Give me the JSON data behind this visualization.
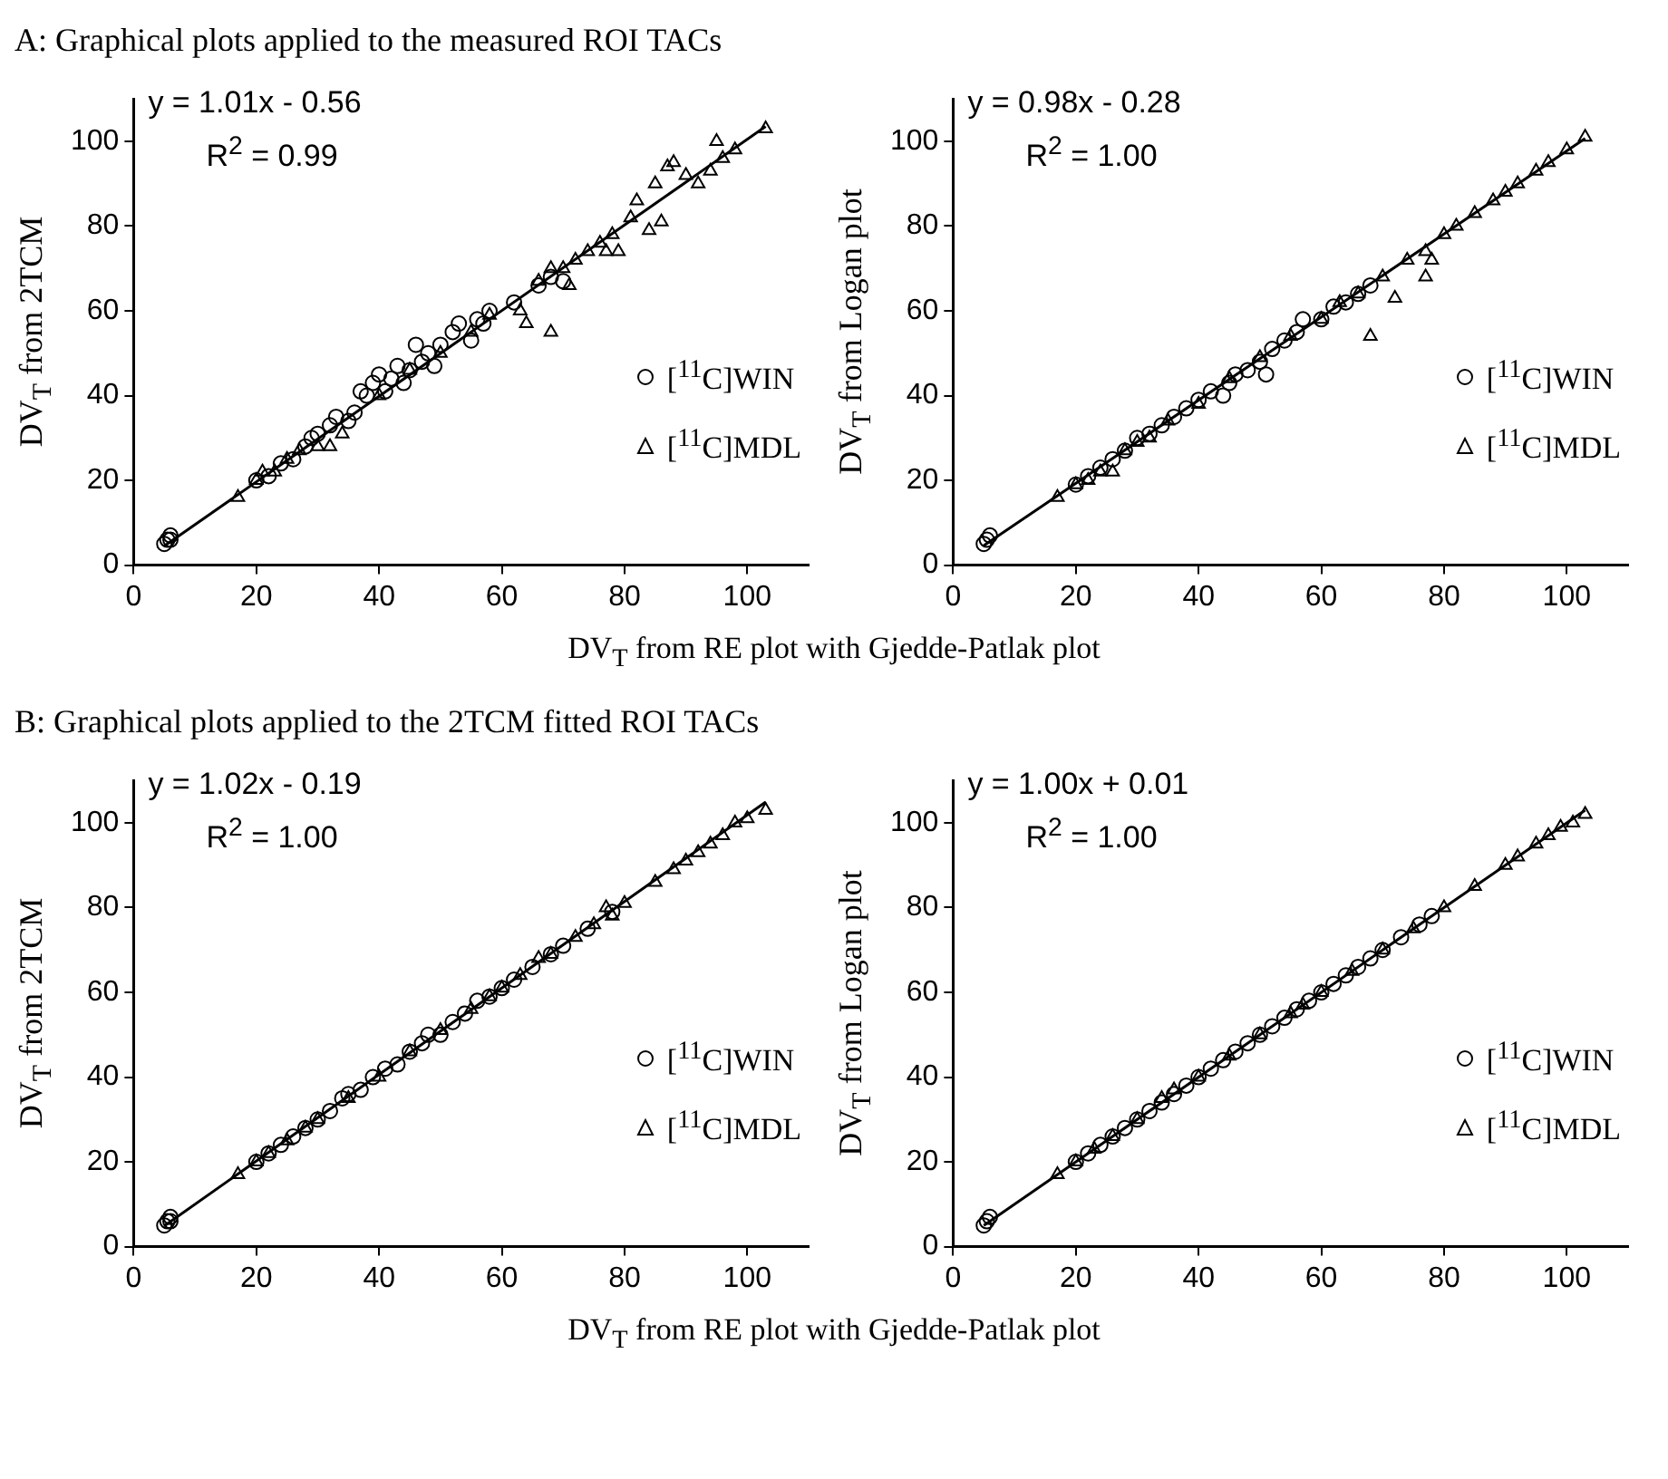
{
  "chart_data": [
    {
      "type": "scatter",
      "title": "A: Graphical plots applied to the measured ROI TACs",
      "xlabel": "DV$_{T}$ from RE plot with Gjedde-Patlak plot",
      "ylabel": "DV$_{T}$ from 2TCM",
      "xlim": [
        0,
        110
      ],
      "ylim": [
        0,
        110
      ],
      "xticks": [
        0,
        20,
        40,
        60,
        80,
        100
      ],
      "yticks": [
        0,
        20,
        40,
        60,
        80,
        100
      ],
      "grid": false,
      "legend": "right",
      "annotations": [
        "y = 1.01x - 0.56",
        "R$^{2}$ = 0.99"
      ],
      "series": [
        {
          "name": "[$^{11}$C]WIN",
          "marker": "circle",
          "color": "#000000",
          "x": [
            5,
            5.5,
            6,
            6,
            20,
            22,
            24,
            26,
            28,
            29,
            30,
            32,
            33,
            35,
            36,
            37,
            38,
            39,
            40,
            41,
            42,
            43,
            44,
            45,
            46,
            47,
            48,
            49,
            50,
            52,
            53,
            55,
            56,
            57,
            58,
            62,
            66,
            68,
            70
          ],
          "values": [
            5,
            6,
            7,
            6,
            20,
            21,
            24,
            25,
            28,
            30,
            31,
            33,
            35,
            34,
            36,
            41,
            40,
            43,
            45,
            41,
            44,
            47,
            43,
            46,
            52,
            48,
            50,
            47,
            52,
            55,
            57,
            53,
            58,
            57,
            60,
            62,
            66,
            68,
            67
          ]
        },
        {
          "name": "[$^{11}$C]MDL",
          "marker": "triangle",
          "color": "#000000",
          "x": [
            17,
            20,
            21,
            23,
            25,
            27,
            30,
            32,
            34,
            40,
            45,
            50,
            55,
            58,
            63,
            64,
            66,
            68,
            68,
            70,
            71,
            72,
            74,
            76,
            77,
            78,
            79,
            81,
            82,
            84,
            85,
            86,
            87,
            88,
            90,
            92,
            94,
            95,
            96,
            98,
            103
          ],
          "values": [
            16,
            20,
            22,
            22,
            25,
            27,
            28,
            28,
            31,
            40,
            46,
            50,
            55,
            59,
            60,
            57,
            67,
            55,
            70,
            70,
            66,
            72,
            74,
            76,
            74,
            78,
            74,
            82,
            86,
            79,
            90,
            81,
            94,
            95,
            92,
            90,
            93,
            100,
            96,
            98,
            103
          ]
        },
        {
          "type": "line",
          "marker": "none",
          "color": "#000000",
          "x": [
            5,
            103
          ],
          "values": [
            4.5,
            103.5
          ]
        }
      ]
    },
    {
      "type": "scatter",
      "ylabel": "DV$_{T}$ from Logan plot",
      "xlim": [
        0,
        110
      ],
      "ylim": [
        0,
        110
      ],
      "xticks": [
        0,
        20,
        40,
        60,
        80,
        100
      ],
      "yticks": [
        0,
        20,
        40,
        60,
        80,
        100
      ],
      "grid": false,
      "legend": "right",
      "annotations": [
        "y = 0.98x - 0.28",
        "R$^{2}$ = 1.00"
      ],
      "series": [
        {
          "name": "[$^{11}$C]WIN",
          "marker": "circle",
          "color": "#000000",
          "x": [
            5,
            5.5,
            6,
            20,
            22,
            24,
            26,
            28,
            30,
            32,
            34,
            36,
            38,
            40,
            42,
            44,
            45,
            46,
            48,
            50,
            51,
            52,
            54,
            56,
            57,
            60,
            62,
            64,
            66,
            68
          ],
          "values": [
            5,
            6,
            7,
            19,
            21,
            23,
            25,
            27,
            30,
            31,
            33,
            35,
            37,
            39,
            41,
            40,
            43,
            45,
            46,
            48,
            45,
            51,
            53,
            55,
            58,
            58,
            61,
            62,
            64,
            66
          ]
        },
        {
          "name": "[$^{11}$C]MDL",
          "marker": "triangle",
          "color": "#000000",
          "x": [
            17,
            20,
            22,
            24,
            26,
            28,
            30,
            32,
            35,
            40,
            45,
            50,
            55,
            60,
            63,
            66,
            68,
            70,
            72,
            74,
            77,
            77,
            78,
            80,
            82,
            85,
            88,
            90,
            92,
            95,
            97,
            100,
            103
          ],
          "values": [
            16,
            19,
            20,
            22,
            22,
            27,
            29,
            30,
            34,
            38,
            44,
            49,
            54,
            58,
            62,
            64,
            54,
            68,
            63,
            72,
            74,
            68,
            72,
            78,
            80,
            83,
            86,
            88,
            90,
            93,
            95,
            98,
            101
          ]
        },
        {
          "type": "line",
          "marker": "none",
          "color": "#000000",
          "x": [
            5,
            103
          ],
          "values": [
            4.6,
            100.7
          ]
        }
      ]
    },
    {
      "type": "scatter",
      "title": "B: Graphical plots applied to the 2TCM fitted ROI TACs",
      "xlabel": "DV$_{T}$ from RE plot with Gjedde-Patlak plot",
      "ylabel": "DV$_{T}$ from 2TCM",
      "xlim": [
        0,
        110
      ],
      "ylim": [
        0,
        110
      ],
      "xticks": [
        0,
        20,
        40,
        60,
        80,
        100
      ],
      "yticks": [
        0,
        20,
        40,
        60,
        80,
        100
      ],
      "grid": false,
      "legend": "right",
      "annotations": [
        "y = 1.02x - 0.19",
        "R$^{2}$ = 1.00"
      ],
      "series": [
        {
          "name": "[$^{11}$C]WIN",
          "marker": "circle",
          "color": "#000000",
          "x": [
            5,
            5.5,
            6,
            6,
            20,
            22,
            24,
            26,
            28,
            30,
            32,
            34,
            35,
            37,
            39,
            41,
            43,
            45,
            47,
            48,
            50,
            52,
            54,
            56,
            58,
            60,
            62,
            65,
            68,
            70,
            74,
            78
          ],
          "values": [
            5,
            6,
            7,
            6,
            20,
            22,
            24,
            26,
            28,
            30,
            32,
            35,
            36,
            37,
            40,
            42,
            43,
            46,
            48,
            50,
            50,
            53,
            55,
            58,
            59,
            61,
            63,
            66,
            69,
            71,
            75,
            79
          ]
        },
        {
          "name": "[$^{11}$C]MDL",
          "marker": "triangle",
          "color": "#000000",
          "x": [
            17,
            20,
            22,
            25,
            28,
            30,
            35,
            40,
            45,
            50,
            55,
            58,
            60,
            63,
            66,
            68,
            72,
            75,
            77,
            78,
            80,
            85,
            88,
            90,
            92,
            94,
            96,
            98,
            100,
            103
          ],
          "values": [
            17,
            20,
            22,
            25,
            28,
            30,
            35,
            40,
            46,
            51,
            56,
            59,
            61,
            64,
            68,
            69,
            73,
            76,
            80,
            78,
            81,
            86,
            89,
            91,
            93,
            95,
            97,
            100,
            101,
            103
          ]
        },
        {
          "type": "line",
          "marker": "none",
          "color": "#000000",
          "x": [
            5,
            103
          ],
          "values": [
            4.9,
            104.9
          ]
        }
      ]
    },
    {
      "type": "scatter",
      "ylabel": "DV$_{T}$ from Logan plot",
      "xlim": [
        0,
        110
      ],
      "ylim": [
        0,
        110
      ],
      "xticks": [
        0,
        20,
        40,
        60,
        80,
        100
      ],
      "yticks": [
        0,
        20,
        40,
        60,
        80,
        100
      ],
      "grid": false,
      "legend": "right",
      "annotations": [
        "y = 1.00x + 0.01",
        "R$^{2}$ = 1.00"
      ],
      "series": [
        {
          "name": "[$^{11}$C]WIN",
          "marker": "circle",
          "color": "#000000",
          "x": [
            5,
            5.5,
            6,
            20,
            22,
            24,
            26,
            28,
            30,
            32,
            34,
            36,
            38,
            40,
            42,
            44,
            46,
            48,
            50,
            52,
            54,
            56,
            58,
            60,
            62,
            64,
            66,
            68,
            70,
            73,
            76,
            78
          ],
          "values": [
            5,
            6,
            7,
            20,
            22,
            24,
            26,
            28,
            30,
            32,
            34,
            36,
            38,
            40,
            42,
            44,
            46,
            48,
            50,
            52,
            54,
            56,
            58,
            60,
            62,
            64,
            66,
            68,
            70,
            73,
            76,
            78
          ]
        },
        {
          "name": "[$^{11}$C]MDL",
          "marker": "triangle",
          "color": "#000000",
          "x": [
            17,
            20,
            23,
            26,
            30,
            34,
            36,
            40,
            45,
            50,
            55,
            57,
            60,
            65,
            70,
            75,
            80,
            85,
            90,
            92,
            95,
            97,
            99,
            101,
            103
          ],
          "values": [
            17,
            20,
            23,
            26,
            30,
            35,
            37,
            40,
            45,
            50,
            55,
            57,
            60,
            65,
            70,
            75,
            80,
            85,
            90,
            92,
            95,
            97,
            99,
            100,
            102
          ]
        },
        {
          "type": "line",
          "marker": "none",
          "color": "#000000",
          "x": [
            5,
            103
          ],
          "values": [
            5,
            103
          ]
        }
      ]
    }
  ]
}
